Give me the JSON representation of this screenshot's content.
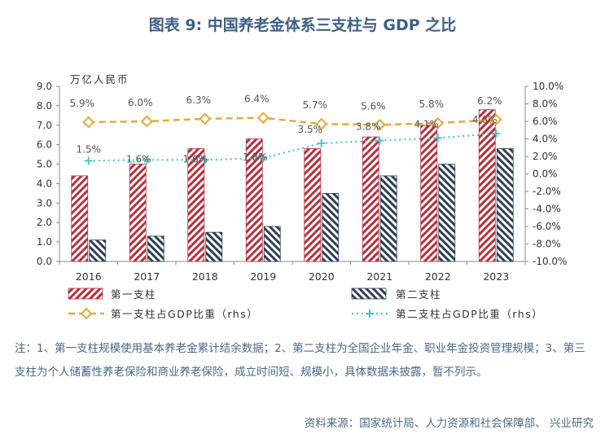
{
  "title": "图表 9:  中国养老金体系三支柱与 GDP 之比",
  "chart_data": {
    "type": "bar",
    "categories": [
      "2016",
      "2017",
      "2018",
      "2019",
      "2020",
      "2021",
      "2022",
      "2023"
    ],
    "ylabel": "万亿人民币",
    "ylim": [
      0,
      9
    ],
    "yticks": [
      "0.0",
      "1.0",
      "2.0",
      "3.0",
      "4.0",
      "5.0",
      "6.0",
      "7.0",
      "8.0",
      "9.0"
    ],
    "y2lim": [
      -10,
      10
    ],
    "y2ticks": [
      "-10.0%",
      "-8.0%",
      "-6.0%",
      "-4.0%",
      "-2.0%",
      "0.0%",
      "2.0%",
      "4.0%",
      "6.0%",
      "8.0%",
      "10.0%"
    ],
    "series": [
      {
        "name": "第一支柱",
        "kind": "bar",
        "values": [
          4.4,
          5.0,
          5.8,
          6.3,
          5.8,
          6.4,
          7.0,
          7.8
        ]
      },
      {
        "name": "第二支柱",
        "kind": "bar",
        "values": [
          1.1,
          1.3,
          1.5,
          1.8,
          3.5,
          4.4,
          5.0,
          5.8
        ]
      },
      {
        "name": "第一支柱占GDP比重（rhs）",
        "kind": "line",
        "axis": "right",
        "values": [
          5.9,
          6.0,
          6.3,
          6.4,
          5.7,
          5.6,
          5.8,
          6.2
        ],
        "labels": [
          "5.9%",
          "6.0%",
          "6.3%",
          "6.4%",
          "5.7%",
          "5.6%",
          "5.8%",
          "6.2%"
        ]
      },
      {
        "name": "第二支柱占GDP比重（rhs）",
        "kind": "line",
        "axis": "right",
        "values": [
          1.5,
          1.6,
          1.6,
          1.8,
          3.5,
          3.8,
          4.1,
          4.6
        ],
        "labels": [
          "1.5%",
          "1.6%",
          "1.6%",
          "1.8%",
          "3.5%",
          "3.8%",
          "4.1%",
          "4.6%"
        ]
      }
    ],
    "legend_position": "bottom",
    "colors": {
      "bar1": "#b5303c",
      "bar2": "#2e3f55",
      "line1": "#e4a93a",
      "line2": "#4fc3c9"
    }
  },
  "note": "注：1、第一支柱规模使用基本养老金累计结余数据；2、第二支柱为全国企业年金、职业年金投资管理规模；3、第三支柱为个人储蓄性养老保险和商业养老保险，成立时间短、规模小，具体数据未披露，暂不列示。",
  "source": "资料来源：国家统计局、人力资源和社会保障部、 兴业研究"
}
